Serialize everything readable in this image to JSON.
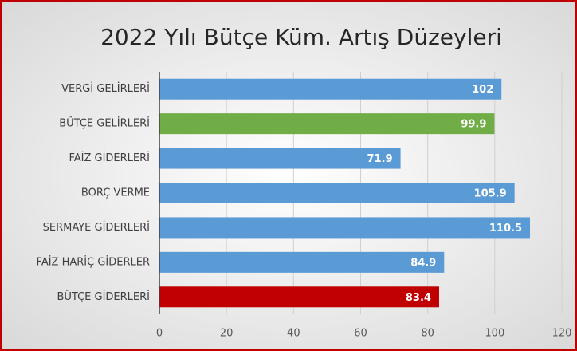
{
  "chart_data": {
    "type": "bar",
    "orientation": "horizontal",
    "title": "2022 Yılı Bütçe Küm. Artış Düzeyleri",
    "categories": [
      "VERGİ GELİRLERİ",
      "BÜTÇE GELİRLERİ",
      "FAİZ GİDERLERİ",
      "BORÇ VERME",
      "SERMAYE GİDERLERİ",
      "FAİZ HARİÇ GİDERLER",
      "BÜTÇE GİDERLERİ"
    ],
    "values": [
      102,
      99.9,
      71.9,
      105.9,
      110.5,
      84.9,
      83.4
    ],
    "colors": [
      "#5b9bd5",
      "#70ad47",
      "#5b9bd5",
      "#5b9bd5",
      "#5b9bd5",
      "#5b9bd5",
      "#c00000"
    ],
    "xlim": [
      0,
      120
    ],
    "xticks": [
      0,
      20,
      40,
      60,
      80,
      100,
      120
    ],
    "grid": true
  }
}
